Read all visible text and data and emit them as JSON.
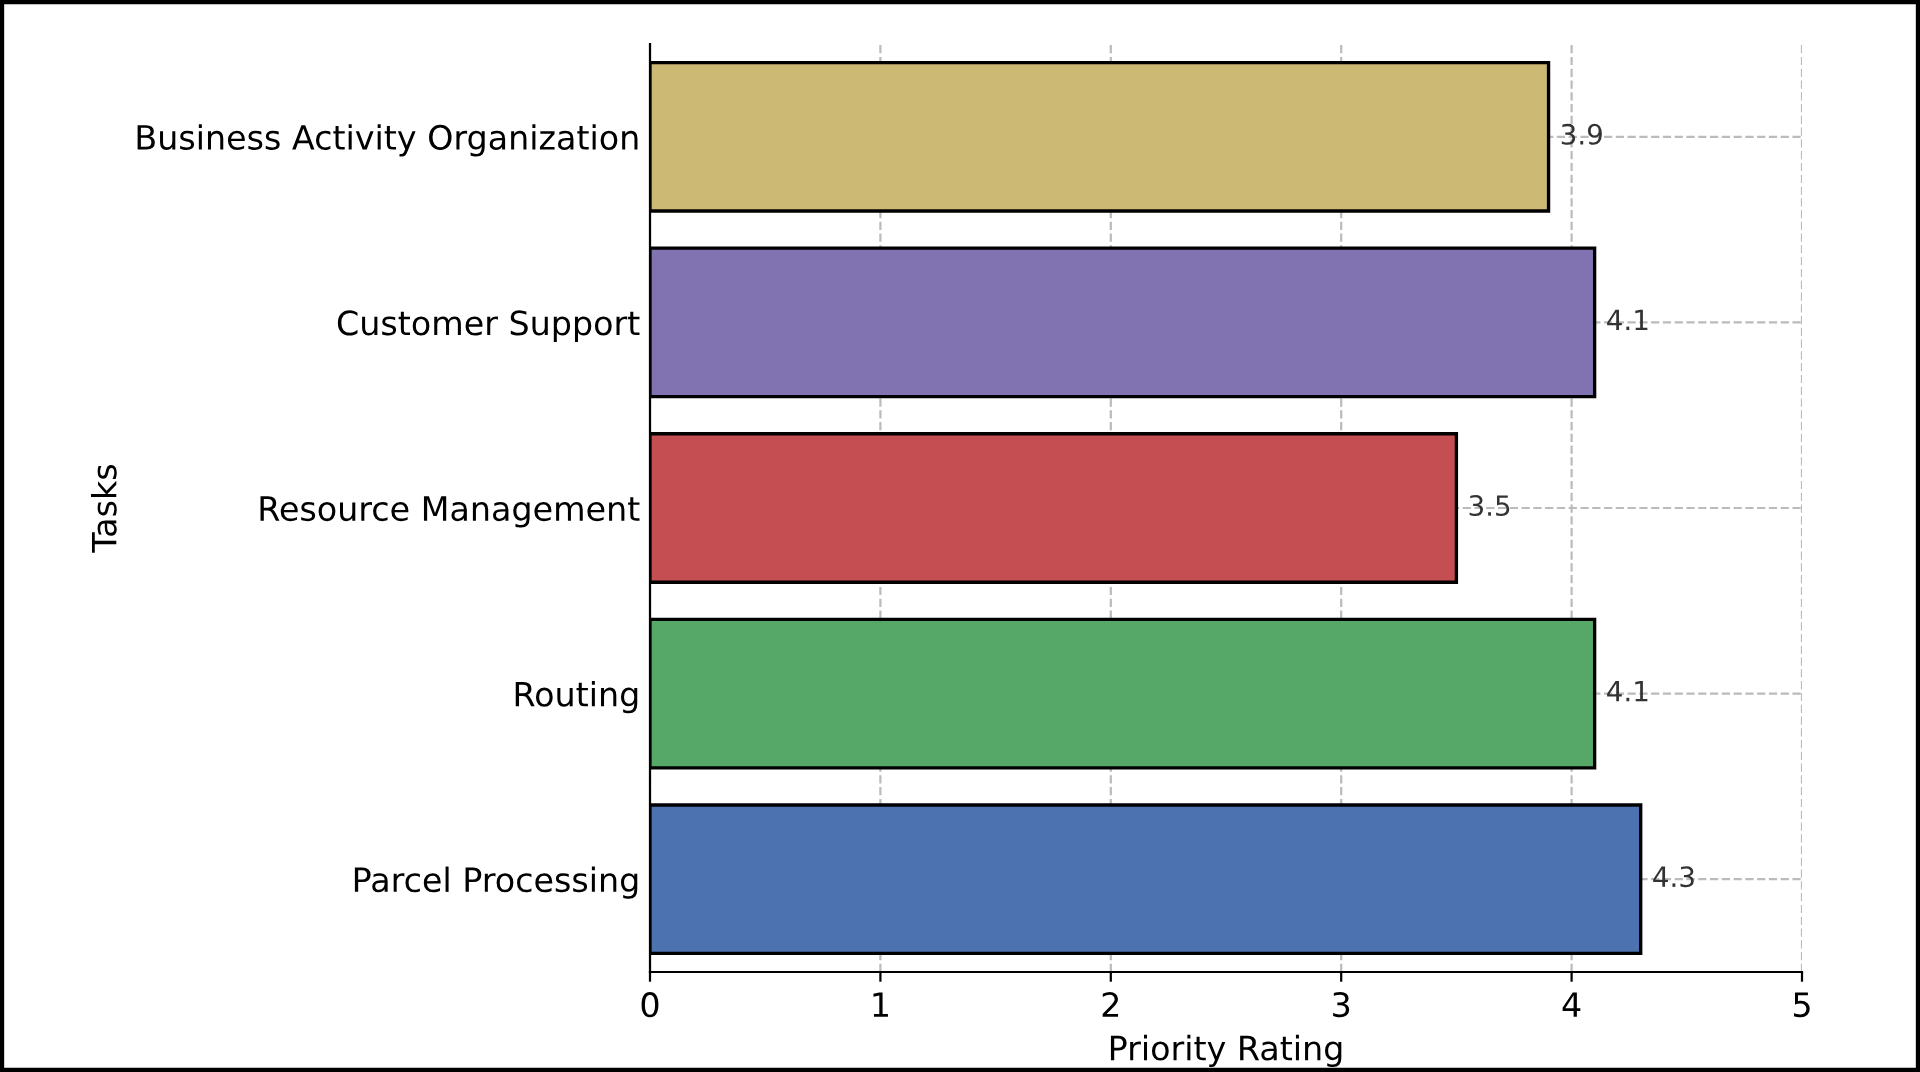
{
  "chart_data": {
    "type": "bar",
    "orientation": "horizontal",
    "xlabel": "Priority Rating",
    "ylabel": "Tasks",
    "categories": [
      "Business Activity Organization",
      "Customer Support",
      "Resource Management",
      "Routing",
      "Parcel Processing"
    ],
    "values": [
      3.9,
      4.1,
      3.5,
      4.1,
      4.3
    ],
    "colors": [
      "#ccb974",
      "#8172b2",
      "#c44e52",
      "#55a868",
      "#4c72b0"
    ],
    "xlim": [
      0,
      5
    ],
    "xticks": [
      0,
      1,
      2,
      3,
      4,
      5
    ],
    "grid": true,
    "data_labels": true
  }
}
